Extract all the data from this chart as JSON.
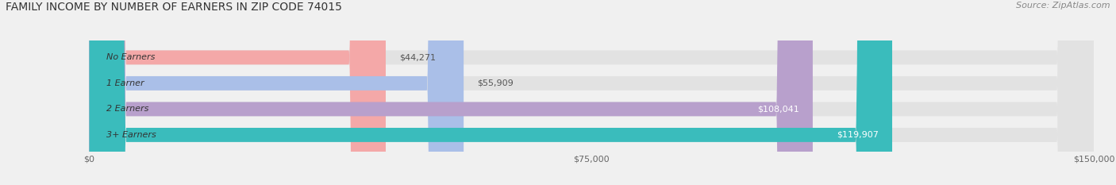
{
  "title": "FAMILY INCOME BY NUMBER OF EARNERS IN ZIP CODE 74015",
  "source": "Source: ZipAtlas.com",
  "categories": [
    "No Earners",
    "1 Earner",
    "2 Earners",
    "3+ Earners"
  ],
  "values": [
    44271,
    55909,
    108041,
    119907
  ],
  "bar_colors": [
    "#f4a8a8",
    "#aabfe8",
    "#b8a0cc",
    "#3abcbc"
  ],
  "label_colors_inside": [
    "#ffffff",
    "#ffffff",
    "#ffffff",
    "#ffffff"
  ],
  "label_colors_outside": [
    "#666666",
    "#666666",
    "#666666",
    "#666666"
  ],
  "xlim": [
    0,
    150000
  ],
  "xticks": [
    0,
    75000,
    150000
  ],
  "xtick_labels": [
    "$0",
    "$75,000",
    "$150,000"
  ],
  "background_color": "#f0f0f0",
  "bar_bg_color": "#e2e2e2",
  "bar_height": 0.55,
  "title_fontsize": 10,
  "source_fontsize": 8,
  "label_fontsize": 8,
  "category_fontsize": 8,
  "inside_threshold": 0.62
}
